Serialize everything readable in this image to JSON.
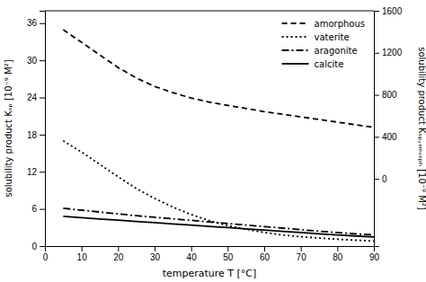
{
  "chart_data": {
    "type": "line",
    "x_label": "temperature T [°C]",
    "y_label": "solubility product Kₛₚ [10⁻⁹ M²]",
    "y2_label": "solubility product Kₛₚ,ₐₘₒᵣₚₕ [10⁻⁹ M²]",
    "x": [
      5,
      10,
      15,
      20,
      25,
      30,
      35,
      40,
      45,
      50,
      55,
      60,
      65,
      70,
      75,
      80,
      85,
      90
    ],
    "xlim": [
      0,
      90
    ],
    "xticks": [
      0,
      10,
      20,
      30,
      40,
      50,
      60,
      70,
      80,
      90
    ],
    "ylim": [
      0,
      38
    ],
    "yticks": [
      0,
      6,
      12,
      18,
      24,
      30,
      36
    ],
    "y2lim": [
      -640,
      1600
    ],
    "y2ticks": [
      0,
      400,
      800,
      1200,
      1600
    ],
    "grid": false,
    "legend": "upper right",
    "series": [
      {
        "name": "amorphous",
        "color": "#000000",
        "line_style": "dashed",
        "axis": "y2",
        "values": [
          1420,
          1300,
          1180,
          1060,
          960,
          880,
          820,
          770,
          730,
          700,
          670,
          640,
          615,
          590,
          565,
          540,
          515,
          490
        ]
      },
      {
        "name": "vaterite",
        "color": "#000000",
        "line_style": "dotted",
        "axis": "y",
        "values": [
          17.0,
          15.2,
          13.2,
          11.2,
          9.3,
          7.7,
          6.3,
          5.1,
          4.1,
          3.3,
          2.7,
          2.2,
          1.8,
          1.5,
          1.3,
          1.1,
          0.95,
          0.82
        ]
      },
      {
        "name": "aragonite",
        "color": "#000000",
        "line_style": "dashdot",
        "axis": "y",
        "values": [
          6.1,
          5.8,
          5.5,
          5.2,
          4.9,
          4.65,
          4.4,
          4.15,
          3.9,
          3.65,
          3.4,
          3.15,
          2.9,
          2.65,
          2.4,
          2.18,
          1.98,
          1.8
        ]
      },
      {
        "name": "calcite",
        "color": "#000000",
        "line_style": "solid",
        "axis": "y",
        "values": [
          4.8,
          4.58,
          4.38,
          4.18,
          3.98,
          3.78,
          3.58,
          3.38,
          3.18,
          2.98,
          2.78,
          2.58,
          2.38,
          2.18,
          1.98,
          1.8,
          1.63,
          1.48
        ]
      }
    ]
  }
}
